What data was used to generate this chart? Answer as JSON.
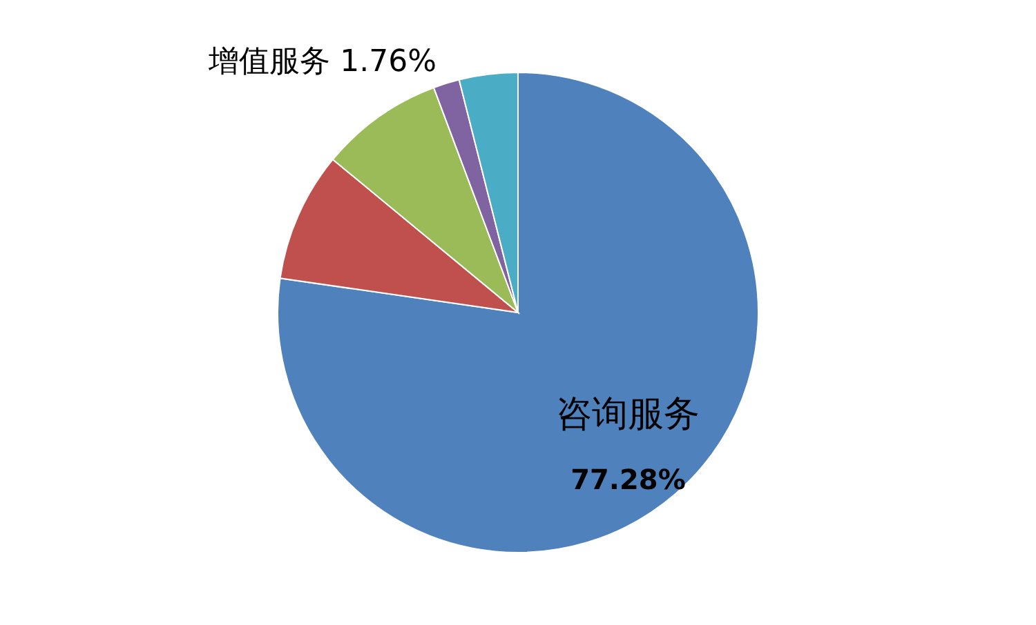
{
  "chart_data": {
    "type": "pie",
    "categories": [
      "咨询服务",
      null,
      null,
      "增值服务",
      null
    ],
    "values": [
      77.28,
      8.72,
      8.3,
      1.76,
      3.94
    ],
    "colors": [
      "#4f81bd",
      "#c0504d",
      "#9bbb59",
      "#8064a2",
      "#4bacc6"
    ],
    "value_labels": [
      "77.28%",
      null,
      null,
      "1.76%",
      null
    ],
    "legend": false
  }
}
